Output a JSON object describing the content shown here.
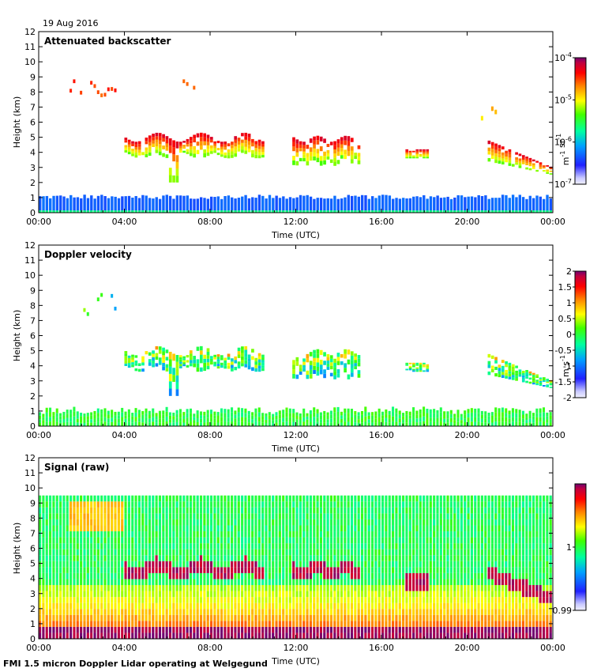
{
  "date_label": "19 Aug 2016",
  "footer": "FMI 1.5 micron Doppler Lidar operating at Welgegund",
  "chart_data": [
    {
      "type": "heatmap",
      "title": "Attenuated backscatter",
      "xlabel": "Time (UTC)",
      "ylabel": "Height (km)",
      "xlim": [
        0,
        24
      ],
      "ylim": [
        0,
        12
      ],
      "x_ticks": [
        "00:00",
        "04:00",
        "08:00",
        "12:00",
        "16:00",
        "20:00",
        "00:00"
      ],
      "y_ticks": [
        "0",
        "1",
        "2",
        "3",
        "4",
        "5",
        "6",
        "7",
        "8",
        "9",
        "10",
        "11",
        "12"
      ],
      "colorbar": {
        "scale": "log",
        "range": [
          1e-07,
          0.0001
        ],
        "tick_bases": [
          "10",
          "10",
          "10",
          "10"
        ],
        "tick_exps": [
          "-7",
          "-6",
          "-5",
          "-4"
        ],
        "label_unit1": "m",
        "label_exp1": "-1",
        "label_unit2": "sr",
        "label_exp2": "-1"
      },
      "features": [
        {
          "name": "boundary layer",
          "t_start": 0,
          "t_end": 24,
          "h_bottom": 0,
          "h_top": 1.2,
          "level": 0.18
        },
        {
          "name": "mid-level cloud",
          "t_start": 4,
          "t_end": 10.5,
          "h_bottom": 3.5,
          "h_top": 5.0,
          "level": 0.9
        },
        {
          "name": "mid-level cloud",
          "t_start": 11.8,
          "t_end": 15.0,
          "h_bottom": 3.3,
          "h_top": 5.0,
          "level": 0.88
        },
        {
          "name": "upper cloud",
          "t_start": 1.5,
          "t_end": 4.0,
          "h_bottom": 7.2,
          "h_top": 8.8,
          "level": 0.78
        },
        {
          "name": "cloud",
          "t_start": 21.0,
          "t_end": 24,
          "h_bottom": 2.5,
          "h_top": 5.0,
          "level": 0.72
        }
      ]
    },
    {
      "type": "heatmap",
      "title": "Doppler velocity",
      "xlabel": "Time (UTC)",
      "ylabel": "Height (km)",
      "xlim": [
        0,
        24
      ],
      "ylim": [
        0,
        12
      ],
      "x_ticks": [
        "00:00",
        "04:00",
        "08:00",
        "12:00",
        "16:00",
        "20:00",
        "00:00"
      ],
      "y_ticks": [
        "0",
        "1",
        "2",
        "3",
        "4",
        "5",
        "6",
        "7",
        "8",
        "9",
        "10",
        "11",
        "12"
      ],
      "colorbar": {
        "scale": "linear",
        "range": [
          -2,
          2
        ],
        "ticks": [
          "2",
          "1.5",
          "1",
          "0.5",
          "0",
          "-0.5",
          "-1",
          "-1.5",
          "-2"
        ],
        "label_unit1": "m",
        "label_unit2": "s",
        "label_exp2": "-1"
      }
    },
    {
      "type": "heatmap",
      "title": "Signal (raw)",
      "xlabel": "Time (UTC)",
      "ylabel": "Height (km)",
      "xlim": [
        0,
        24
      ],
      "ylim": [
        0,
        12
      ],
      "x_ticks": [
        "00:00",
        "04:00",
        "08:00",
        "12:00",
        "16:00",
        "20:00",
        "00:00"
      ],
      "y_ticks": [
        "0",
        "1",
        "2",
        "3",
        "4",
        "5",
        "6",
        "7",
        "8",
        "9",
        "10",
        "11",
        "12"
      ],
      "colorbar": {
        "scale": "linear",
        "range": [
          0.99,
          1.01
        ],
        "ticks": [
          "1",
          "0.99"
        ]
      }
    }
  ]
}
